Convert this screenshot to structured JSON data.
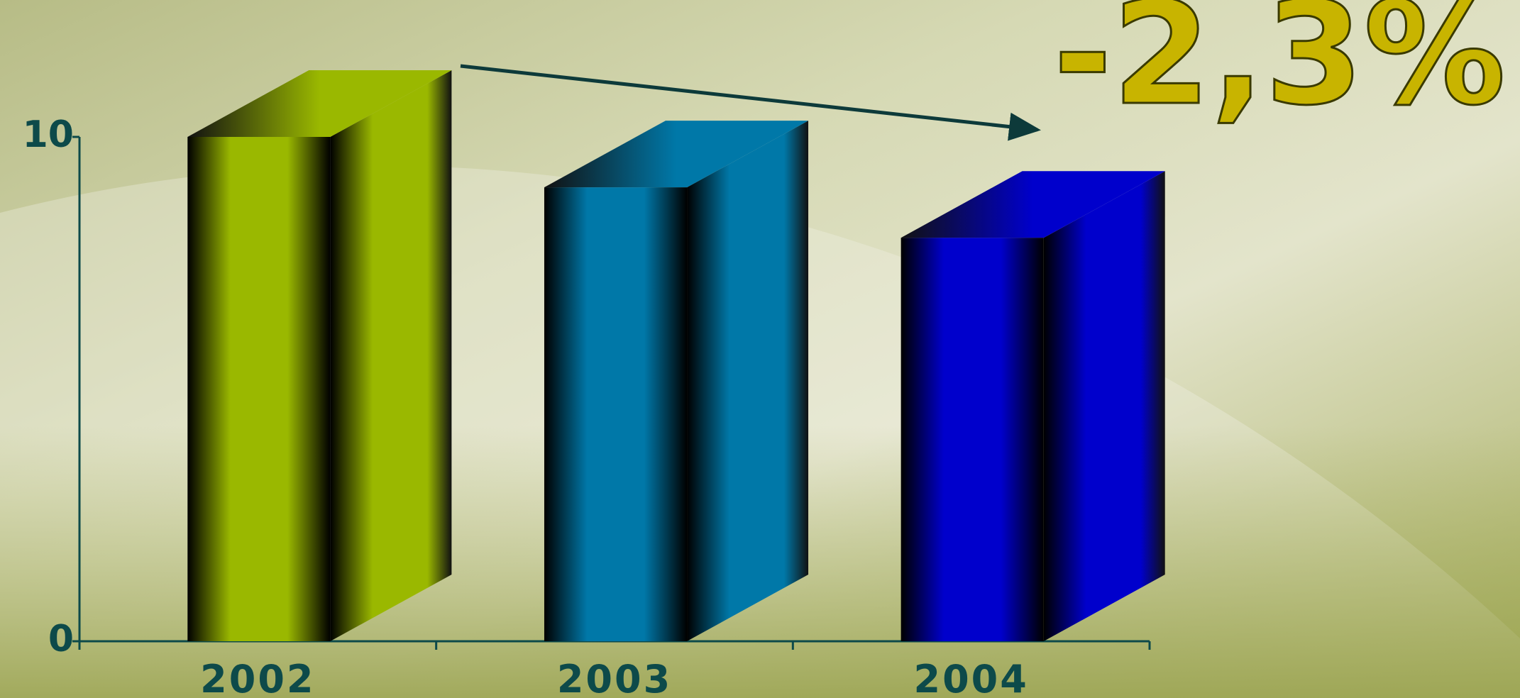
{
  "chart_data": {
    "type": "bar3d",
    "categories": [
      "2002",
      "2003",
      "2004"
    ],
    "values": [
      10,
      9,
      8
    ],
    "colors": [
      "#9ab800",
      "#0078a8",
      "#0000cc"
    ],
    "ylim": [
      0,
      10
    ],
    "yticks": [
      0,
      10
    ],
    "annotation": "-2,3%"
  }
}
